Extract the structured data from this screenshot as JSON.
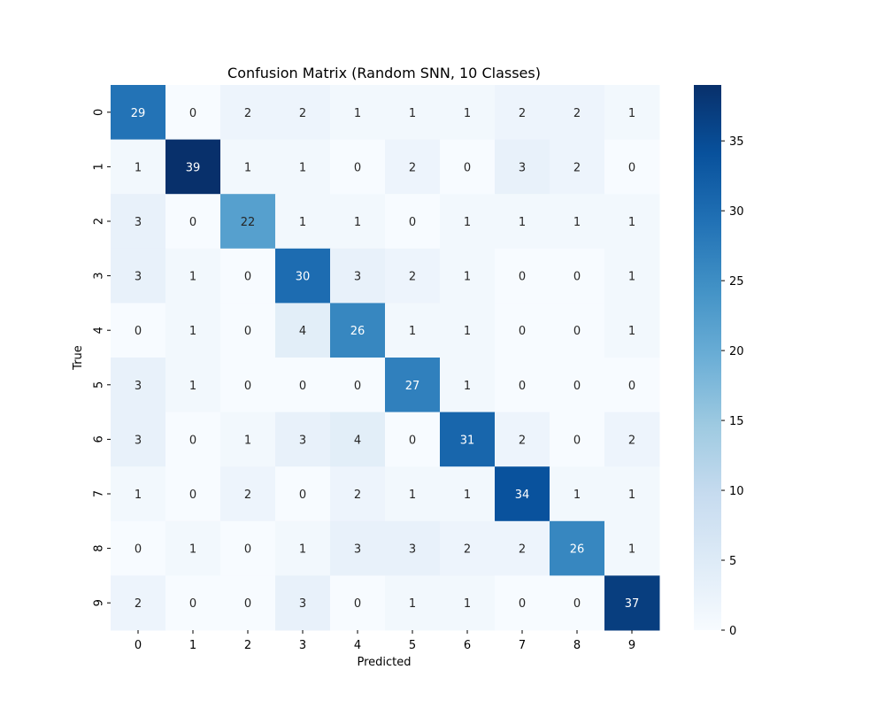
{
  "chart_data": {
    "type": "heatmap",
    "title": "Confusion Matrix (Random SNN, 10 Classes)",
    "xlabel": "Predicted",
    "ylabel": "True",
    "x_categories": [
      "0",
      "1",
      "2",
      "3",
      "4",
      "5",
      "6",
      "7",
      "8",
      "9"
    ],
    "y_categories": [
      "0",
      "1",
      "2",
      "3",
      "4",
      "5",
      "6",
      "7",
      "8",
      "9"
    ],
    "values": [
      [
        29,
        0,
        2,
        2,
        1,
        1,
        1,
        2,
        2,
        1
      ],
      [
        1,
        39,
        1,
        1,
        0,
        2,
        0,
        3,
        2,
        0
      ],
      [
        3,
        0,
        22,
        1,
        1,
        0,
        1,
        1,
        1,
        1
      ],
      [
        3,
        1,
        0,
        30,
        3,
        2,
        1,
        0,
        0,
        1
      ],
      [
        0,
        1,
        0,
        4,
        26,
        1,
        1,
        0,
        0,
        1
      ],
      [
        3,
        1,
        0,
        0,
        0,
        27,
        1,
        0,
        0,
        0
      ],
      [
        3,
        0,
        1,
        3,
        4,
        0,
        31,
        2,
        0,
        2
      ],
      [
        1,
        0,
        2,
        0,
        2,
        1,
        1,
        34,
        1,
        1
      ],
      [
        0,
        1,
        0,
        1,
        3,
        3,
        2,
        2,
        26,
        1
      ],
      [
        2,
        0,
        0,
        3,
        0,
        1,
        1,
        0,
        0,
        37
      ]
    ],
    "colormap": "Blues",
    "value_range": [
      0,
      39
    ],
    "colorbar": {
      "ticks": [
        0,
        5,
        10,
        15,
        20,
        25,
        30,
        35
      ],
      "tick_labels": [
        "0",
        "5",
        "10",
        "15",
        "20",
        "25",
        "30",
        "35"
      ]
    },
    "annotations": "cell values"
  }
}
